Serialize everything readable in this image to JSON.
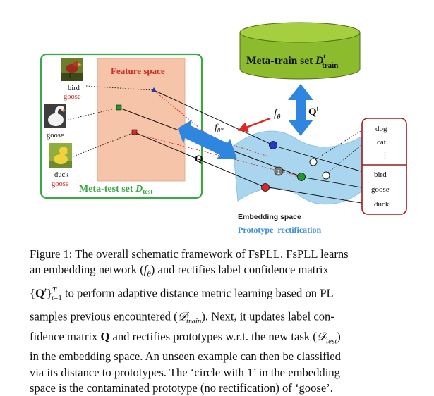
{
  "figure": {
    "metatest_label_main": "Meta-test set ",
    "metatest_label_D": "D",
    "metatest_label_sub": "test",
    "feature_space_label": "Feature space",
    "metatrain_label_main": "Meta-train set ",
    "metatrain_label_D": "D",
    "metatrain_label_sup": "t",
    "metatrain_label_sub": "train",
    "f_theta": "f",
    "f_theta_sub": "θ",
    "f_theta_star_sub": "θ*",
    "q_t_label": "Q",
    "q_t_sup": "t",
    "q_label": "Q",
    "embedding_label": "Embedding space",
    "prototype_label": "Prototype  rectification",
    "one_marker": "1",
    "samples": [
      {
        "name": "bird",
        "label": "goose",
        "label_color": "#d42a2a"
      },
      {
        "name": "goose",
        "label": "",
        "label_color": "#d42a2a"
      },
      {
        "name": "duck",
        "label": "goose",
        "label_color": "#d42a2a"
      }
    ],
    "classes_top": [
      "dog",
      "cat",
      "⋮"
    ],
    "classes_bottom": [
      "bird",
      "goose",
      "duck"
    ],
    "colors": {
      "green_frame": "#3aa845",
      "feature_fill": "#f6c4a8",
      "feature_text": "#c8302a",
      "cylinder": "#8dbb2e",
      "arrow_blue": "#2f86de",
      "arrow_red": "#e0261f",
      "embedding_fill": "#a9d6ee",
      "prototype_text": "#3d8fd8",
      "class_frame": "#9b1c1c"
    }
  },
  "caption": {
    "l1": "Figure 1: The overall schematic framework of FsPLL. FsPLL learns",
    "l2a": "an embedding network (",
    "l2b": ") and rectifies label confidence matrix",
    "l3b": " to perform adaptive distance metric learning based on PL",
    "l4a": "samples previous encountered (",
    "l4b": "). Next, it updates label con-",
    "l5a": "fidence matrix ",
    "l5b": " and rectifies prototypes w.r.t. the new task (",
    "l5c": ")",
    "l6": "in the embedding space. An unseen example can then be classified",
    "l7": "via its distance to prototypes. The ‘circle with 1’ in the embedding",
    "l8": "space is the contaminated prototype (no rectification) of ‘goose’."
  }
}
